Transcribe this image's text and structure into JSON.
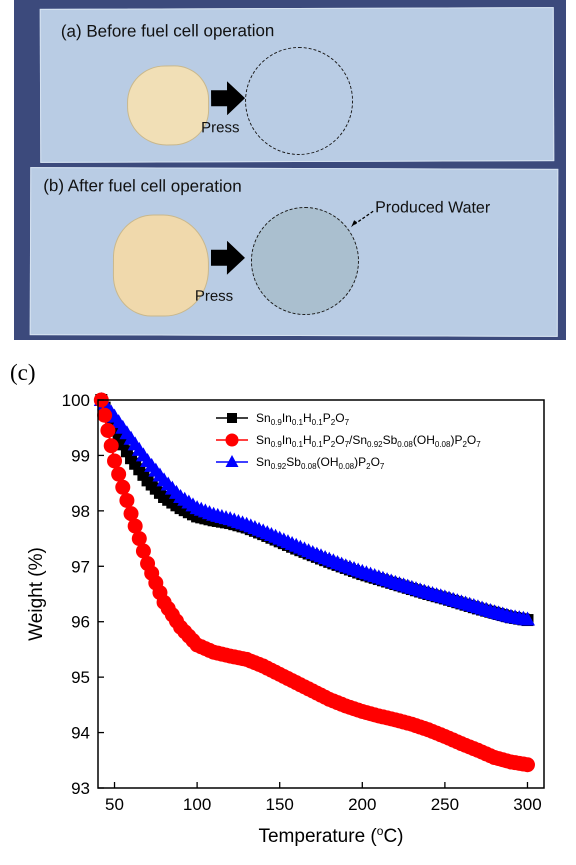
{
  "photo": {
    "caption_a": "(a) Before fuel cell operation",
    "caption_b": "(b) After fuel cell operation",
    "press_label": "Press",
    "water_label": "Produced Water"
  },
  "panel_label": "(c)",
  "chart_data": {
    "type": "scatter",
    "xlabel": "Temperature (°C)",
    "ylabel": "Weight (%)",
    "xlim": [
      40,
      310
    ],
    "ylim": [
      93,
      100
    ],
    "xticks": [
      50,
      100,
      150,
      200,
      250,
      300
    ],
    "yticks": [
      93,
      94,
      95,
      96,
      97,
      98,
      99,
      100
    ],
    "grid": false,
    "legend_position": "top-right",
    "series": [
      {
        "name": "Sn0.9In0.1H0.1P2O7",
        "color": "#000000",
        "marker": "square",
        "x": [
          42,
          50,
          60,
          70,
          80,
          90,
          100,
          110,
          120,
          130,
          140,
          150,
          160,
          170,
          180,
          190,
          200,
          210,
          220,
          230,
          240,
          250,
          260,
          270,
          280,
          290,
          300
        ],
        "y": [
          100,
          99.45,
          98.95,
          98.55,
          98.25,
          98.05,
          97.9,
          97.83,
          97.78,
          97.7,
          97.58,
          97.45,
          97.32,
          97.2,
          97.08,
          96.97,
          96.86,
          96.77,
          96.68,
          96.59,
          96.5,
          96.42,
          96.33,
          96.24,
          96.16,
          96.08,
          96.03
        ]
      },
      {
        "name": "Sn0.9In0.1H0.1P2O7/Sn0.92Sb0.08(OH0.08)P2O7",
        "color": "#ff0000",
        "marker": "circle",
        "x": [
          42,
          50,
          60,
          70,
          80,
          90,
          100,
          110,
          120,
          130,
          140,
          150,
          160,
          170,
          180,
          190,
          200,
          210,
          220,
          230,
          240,
          250,
          260,
          270,
          280,
          290,
          300
        ],
        "y": [
          100,
          98.9,
          97.95,
          97.05,
          96.35,
          95.9,
          95.58,
          95.45,
          95.38,
          95.32,
          95.2,
          95.05,
          94.9,
          94.75,
          94.6,
          94.48,
          94.38,
          94.3,
          94.23,
          94.15,
          94.05,
          93.93,
          93.8,
          93.68,
          93.55,
          93.47,
          93.42
        ]
      },
      {
        "name": "Sn0.92Sb0.08(OH0.08)P2O7",
        "color": "#0000ff",
        "marker": "triangle",
        "x": [
          42,
          50,
          60,
          70,
          80,
          90,
          100,
          110,
          120,
          130,
          140,
          150,
          160,
          170,
          180,
          190,
          200,
          210,
          220,
          230,
          240,
          250,
          260,
          270,
          280,
          290,
          300
        ],
        "y": [
          100,
          99.7,
          99.3,
          98.9,
          98.55,
          98.25,
          98.05,
          97.93,
          97.85,
          97.75,
          97.63,
          97.5,
          97.37,
          97.24,
          97.12,
          97.0,
          96.9,
          96.8,
          96.7,
          96.61,
          96.52,
          96.44,
          96.35,
          96.26,
          96.17,
          96.09,
          96.04
        ]
      }
    ]
  }
}
